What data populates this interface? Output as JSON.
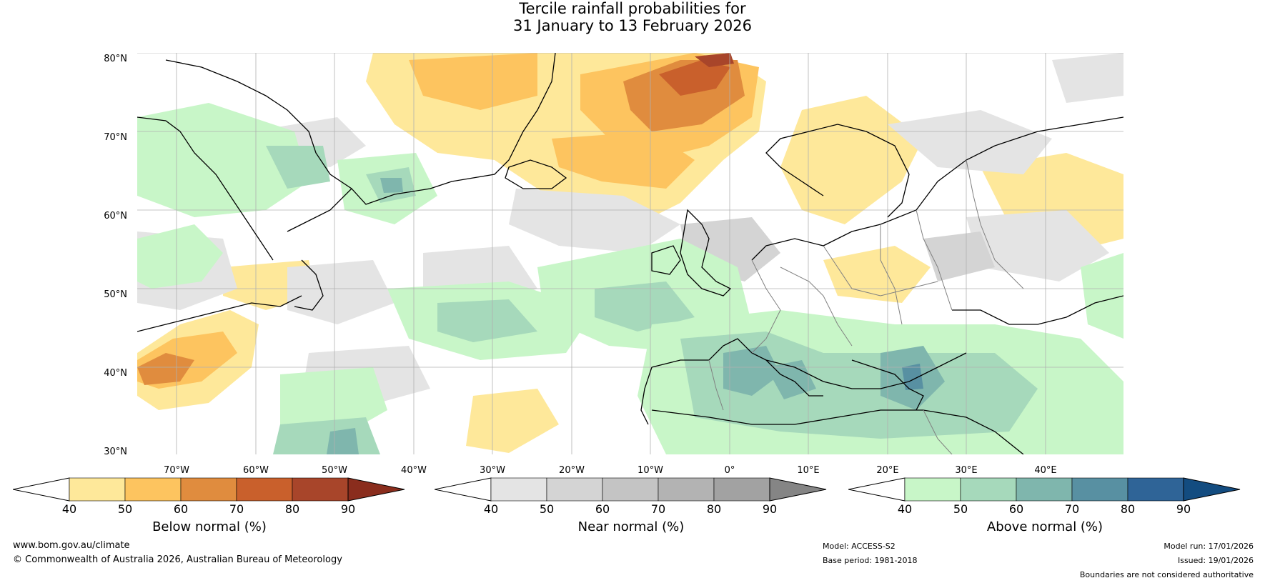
{
  "title": {
    "line1": "Tercile rainfall probabilities for",
    "line2": "31 January to 13 February 2026"
  },
  "axes": {
    "lat_labels": [
      "80°N",
      "70°N",
      "60°N",
      "50°N",
      "40°N",
      "30°N"
    ],
    "lon_labels": [
      "70°W",
      "60°W",
      "50°W",
      "40°W",
      "30°W",
      "20°W",
      "10°W",
      "0°",
      "10°E",
      "20°E",
      "30°E",
      "40°E"
    ]
  },
  "colorbars": [
    {
      "name": "below",
      "label": "Below normal (%)",
      "ticks": [
        "40",
        "50",
        "60",
        "70",
        "80",
        "90"
      ],
      "colors": [
        "#ffffff",
        "#fee89a",
        "#fdc45f",
        "#e08c3e",
        "#c9602c",
        "#a8452a",
        "#8a2d1d"
      ]
    },
    {
      "name": "near",
      "label": "Near normal (%)",
      "ticks": [
        "40",
        "50",
        "60",
        "70",
        "80",
        "90"
      ],
      "colors": [
        "#ffffff",
        "#e4e4e4",
        "#d4d4d4",
        "#c4c4c4",
        "#b3b3b3",
        "#a2a2a2",
        "#858585"
      ]
    },
    {
      "name": "above",
      "label": "Above normal (%)",
      "ticks": [
        "40",
        "50",
        "60",
        "70",
        "80",
        "90"
      ],
      "colors": [
        "#ffffff",
        "#c8f6c8",
        "#a6d9bb",
        "#7fb6ad",
        "#5890a2",
        "#2f6497",
        "#134c80"
      ]
    }
  ],
  "footer": {
    "url": "www.bom.gov.au/climate",
    "copyright": "© Commonwealth of Australia 2026, Australian Bureau of Meteorology",
    "model": "Model: ACCESS-S2",
    "base_period": "Base period: 1981-2018",
    "model_run": "Model run: 17/01/2026",
    "issued": "Issued: 19/01/2026",
    "boundaries": "Boundaries are not considered authoritative"
  }
}
